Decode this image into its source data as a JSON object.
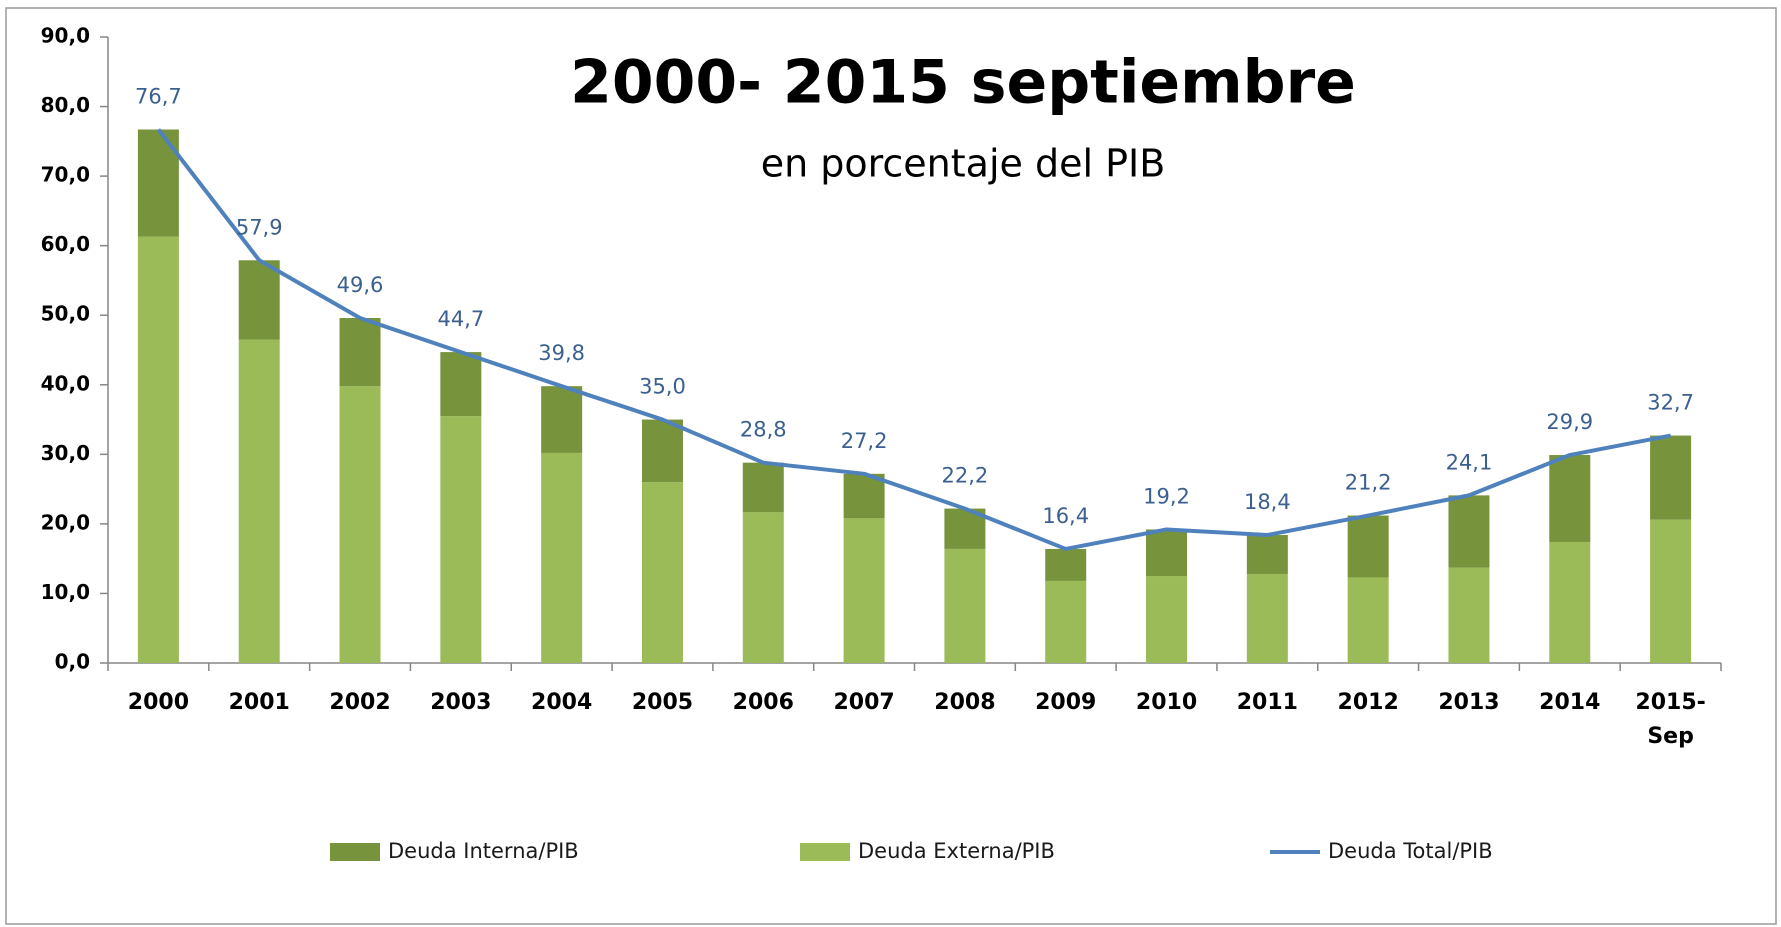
{
  "chart_data": {
    "type": "bar",
    "stacked": true,
    "title": "2000- 2015 septiembre",
    "subtitle": "en porcentaje del PIB",
    "categories": [
      "2000",
      "2001",
      "2002",
      "2003",
      "2004",
      "2005",
      "2006",
      "2007",
      "2008",
      "2009",
      "2010",
      "2011",
      "2012",
      "2013",
      "2014",
      "2015-Sep"
    ],
    "series": [
      {
        "name": "Deuda Interna/PIB",
        "type": "bar",
        "color": "#77933c",
        "values": [
          15.4,
          11.4,
          9.8,
          9.2,
          9.6,
          9.0,
          7.1,
          6.4,
          5.8,
          4.6,
          6.7,
          5.6,
          8.9,
          10.4,
          12.5,
          12.1
        ]
      },
      {
        "name": "Deuda Externa/PIB",
        "type": "bar",
        "color": "#9bbb59",
        "values": [
          61.3,
          46.5,
          39.8,
          35.5,
          30.2,
          26.0,
          21.7,
          20.8,
          16.4,
          11.8,
          12.5,
          12.8,
          12.3,
          13.7,
          17.4,
          20.6
        ]
      },
      {
        "name": "Deuda Total/PIB",
        "type": "line",
        "color": "#4f81bd",
        "values": [
          76.7,
          57.9,
          49.6,
          44.7,
          39.8,
          35.0,
          28.8,
          27.2,
          22.2,
          16.4,
          19.2,
          18.4,
          21.2,
          24.1,
          29.9,
          32.7
        ],
        "value_labels": [
          "76,7",
          "57,9",
          "49,6",
          "44,7",
          "39,8",
          "35,0",
          "28,8",
          "27,2",
          "22,2",
          "16,4",
          "19,2",
          "18,4",
          "21,2",
          "24,1",
          "29,9",
          "32,7"
        ]
      }
    ],
    "ylim": [
      0,
      90
    ],
    "yticks": [
      {
        "value": 0,
        "label": "0,0"
      },
      {
        "value": 10,
        "label": "10,0"
      },
      {
        "value": 20,
        "label": "20,0"
      },
      {
        "value": 30,
        "label": "30,0"
      },
      {
        "value": 40,
        "label": "40,0"
      },
      {
        "value": 50,
        "label": "50,0"
      },
      {
        "value": 60,
        "label": "60,0"
      },
      {
        "value": 70,
        "label": "70,0"
      },
      {
        "value": 80,
        "label": "80,0"
      },
      {
        "value": 90,
        "label": "90,0"
      }
    ],
    "legend": "bottom"
  }
}
